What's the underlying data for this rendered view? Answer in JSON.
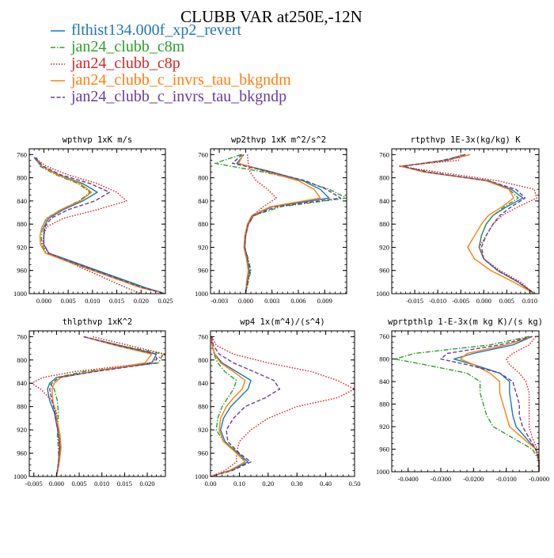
{
  "title": "CLUBB VAR at250E,-12N",
  "legend": [
    {
      "label": "flthist134.000f_xp2_revert",
      "color": "#1f77b4",
      "dash": "solid"
    },
    {
      "label": "jan24_clubb_c8m",
      "color": "#2ca02c",
      "dash": "dashdot"
    },
    {
      "label": "jan24_clubb_c8p",
      "color": "#d62728",
      "dash": "dot"
    },
    {
      "label": "jan24_clubb_c_invrs_tau_bkgndm",
      "color": "#ff7f0e",
      "dash": "solid"
    },
    {
      "label": "jan24_clubb_c_invrs_tau_bkgndp",
      "color": "#6a3d9a",
      "dash": "dash"
    }
  ],
  "chart_data": [
    {
      "type": "line",
      "title": "wpthvp  1xK m/s",
      "xlim": [
        -0.003,
        0.025
      ],
      "ylim": [
        1000,
        750
      ],
      "xticks": [
        "0.000",
        "0.005",
        "0.010",
        "0.015",
        "0.020",
        "0.025"
      ],
      "xtick_values": [
        0,
        0.005,
        0.01,
        0.015,
        0.02,
        0.025
      ],
      "yticks": [
        "760",
        "800",
        "840",
        "880",
        "920",
        "960",
        "1000"
      ],
      "ytick_values": [
        760,
        800,
        840,
        880,
        920,
        960,
        1000
      ],
      "y": [
        765,
        780,
        795,
        810,
        825,
        840,
        855,
        870,
        885,
        900,
        915,
        930,
        945,
        960,
        975,
        990,
        1000
      ],
      "series": [
        {
          "values": [
            -0.002,
            -0.0005,
            0.003,
            0.008,
            0.011,
            0.008,
            0.004,
            0.001,
            0.0,
            0.0,
            0.0,
            0.001,
            0.006,
            0.011,
            0.016,
            0.021,
            0.025
          ]
        },
        {
          "values": [
            -0.0015,
            -0.0008,
            0.0025,
            0.007,
            0.0095,
            0.0072,
            0.0035,
            0.0005,
            -0.0003,
            -0.0005,
            -0.0005,
            0.0005,
            0.0055,
            0.0105,
            0.0155,
            0.0205,
            0.025
          ]
        },
        {
          "values": [
            -0.002,
            0.0005,
            0.005,
            0.011,
            0.015,
            0.017,
            0.011,
            0.004,
            0.0005,
            0.0,
            -0.0003,
            0.001,
            0.005,
            0.009,
            0.013,
            0.017,
            0.02
          ]
        },
        {
          "values": [
            -0.0018,
            -0.0004,
            0.0028,
            0.0075,
            0.0098,
            0.0075,
            0.0035,
            0.0007,
            -0.0004,
            -0.0008,
            -0.0007,
            0.0003,
            0.005,
            0.01,
            0.015,
            0.02,
            0.025
          ]
        },
        {
          "values": [
            -0.0018,
            -0.0002,
            0.0035,
            0.0095,
            0.0135,
            0.0105,
            0.005,
            0.0015,
            0.0002,
            0.0,
            0.0,
            0.001,
            0.0055,
            0.0105,
            0.0155,
            0.0205,
            0.025
          ]
        }
      ]
    },
    {
      "type": "line",
      "title": "wp2thvp  1xK m^2/s^2",
      "xlim": [
        -0.004,
        0.0115
      ],
      "ylim": [
        1000,
        750
      ],
      "xticks": [
        "-0.003",
        "0.000",
        "0.003",
        "0.006",
        "0.009"
      ],
      "xtick_values": [
        -0.003,
        0,
        0.003,
        0.006,
        0.009
      ],
      "yticks": [
        "760",
        "800",
        "840",
        "880",
        "920",
        "960",
        "1000"
      ],
      "ytick_values": [
        760,
        800,
        840,
        880,
        920,
        960,
        1000
      ],
      "y": [
        760,
        775,
        790,
        805,
        820,
        835,
        850,
        865,
        880,
        900,
        920,
        940,
        960,
        980,
        1000
      ],
      "series": [
        {
          "values": [
            -0.0002,
            -0.001,
            0.003,
            0.0065,
            0.0085,
            0.0095,
            0.003,
            0.0008,
            0.0003,
            0.0,
            -0.0001,
            0.0002,
            0.0004,
            0.0002,
            0.0
          ]
        },
        {
          "values": [
            -0.0005,
            -0.0035,
            0.002,
            0.0065,
            0.0095,
            0.0115,
            0.004,
            0.001,
            0.0003,
            0.0,
            -0.0001,
            0.0003,
            0.0006,
            0.0003,
            0.0
          ]
        },
        {
          "values": [
            0.0002,
            0.0003,
            0.0005,
            0.0012,
            0.0025,
            0.0035,
            0.002,
            0.0008,
            0.0003,
            0.0,
            -0.0002,
            0.0001,
            0.0003,
            0.0002,
            0.0
          ]
        },
        {
          "values": [
            -0.0003,
            -0.0008,
            0.0025,
            0.006,
            0.0078,
            0.0085,
            0.0028,
            0.0007,
            0.0002,
            -0.0001,
            -0.0002,
            0.0001,
            0.0003,
            0.0001,
            0.0
          ]
        },
        {
          "values": [
            -0.0004,
            -0.0015,
            0.0028,
            0.0068,
            0.0092,
            0.0108,
            0.0035,
            0.0009,
            0.0003,
            0.0,
            -0.0001,
            0.0002,
            0.0005,
            0.0002,
            0.0
          ]
        }
      ]
    },
    {
      "type": "line",
      "title": "rtpthvp  1E-3x(kg/kg) K",
      "xlim": [
        -0.02,
        0.012
      ],
      "ylim": [
        1000,
        750
      ],
      "xticks": [
        "-0.015",
        "-0.010",
        "-0.005",
        "0.000",
        "0.005",
        "0.010"
      ],
      "xtick_values": [
        -0.015,
        -0.01,
        -0.005,
        0,
        0.005,
        0.01
      ],
      "yticks": [
        "760",
        "800",
        "840",
        "880",
        "920",
        "960",
        "1000"
      ],
      "ytick_values": [
        760,
        800,
        840,
        880,
        920,
        960,
        1000
      ],
      "y": [
        760,
        770,
        780,
        790,
        805,
        820,
        835,
        850,
        865,
        880,
        900,
        920,
        940,
        960,
        980,
        1000
      ],
      "series": [
        {
          "values": [
            -0.003,
            -0.008,
            -0.018,
            -0.013,
            0.001,
            0.006,
            0.0085,
            0.005,
            0.002,
            0.0005,
            -0.0005,
            -0.001,
            0.0,
            0.003,
            0.0075,
            0.011
          ]
        },
        {
          "values": [
            -0.004,
            -0.009,
            -0.0175,
            -0.012,
            0.0005,
            0.0055,
            0.0075,
            0.0045,
            0.002,
            0.0005,
            -0.0005,
            -0.001,
            0.0,
            0.003,
            0.0075,
            0.011
          ]
        },
        {
          "values": [
            -0.005,
            -0.0055,
            -0.0185,
            -0.01,
            0.003,
            0.011,
            0.0115,
            0.0075,
            0.004,
            0.002,
            0.0005,
            -0.001,
            0.0,
            0.0035,
            0.008,
            0.011
          ]
        },
        {
          "values": [
            -0.003,
            -0.0085,
            -0.018,
            -0.013,
            0.0005,
            0.0055,
            0.0065,
            0.004,
            0.001,
            -0.0005,
            -0.002,
            -0.0035,
            -0.002,
            0.0015,
            0.0065,
            0.011
          ]
        },
        {
          "values": [
            -0.004,
            -0.0085,
            -0.0175,
            -0.0125,
            0.001,
            0.007,
            0.009,
            0.006,
            0.0035,
            0.002,
            0.0005,
            -0.0005,
            0.0,
            0.003,
            0.0075,
            0.011
          ]
        }
      ]
    },
    {
      "type": "line",
      "title": "thlpthvp  1xK^2",
      "xlim": [
        -0.006,
        0.024
      ],
      "ylim": [
        1000,
        750
      ],
      "xticks": [
        "-0.005",
        "0.000",
        "0.005",
        "0.010",
        "0.015",
        "0.020"
      ],
      "xtick_values": [
        -0.005,
        0,
        0.005,
        0.01,
        0.015,
        0.02
      ],
      "yticks": [
        "760",
        "800",
        "840",
        "880",
        "920",
        "960",
        "1000"
      ],
      "ytick_values": [
        760,
        800,
        840,
        880,
        920,
        960,
        1000
      ],
      "y": [
        760,
        775,
        790,
        805,
        820,
        830,
        840,
        850,
        870,
        890,
        910,
        930,
        950,
        970,
        985,
        1000
      ],
      "series": [
        {
          "values": [
            0.006,
            0.014,
            0.022,
            0.021,
            0.008,
            0.0,
            -0.0015,
            -0.002,
            -0.0015,
            -0.0005,
            0.0,
            0.0005,
            0.0008,
            0.0005,
            0.0003,
            0.0
          ]
        },
        {
          "values": [
            0.006,
            0.014,
            0.0235,
            0.0225,
            0.006,
            0.0,
            -0.0015,
            -0.0005,
            0.0002,
            0.0004,
            0.0003,
            0.0002,
            0.0004,
            0.0005,
            0.0003,
            0.0
          ]
        },
        {
          "values": [
            0.008,
            0.016,
            0.024,
            0.0205,
            0.004,
            -0.003,
            -0.0055,
            -0.0035,
            -0.001,
            0.0,
            0.0003,
            0.0004,
            0.0006,
            0.0005,
            0.0003,
            0.0
          ]
        },
        {
          "values": [
            0.006,
            0.013,
            0.021,
            0.0195,
            0.008,
            0.001,
            -0.0005,
            -0.001,
            -0.0008,
            -0.0003,
            0.0003,
            0.0008,
            0.001,
            0.0007,
            0.0004,
            0.0
          ]
        },
        {
          "values": [
            0.006,
            0.0135,
            0.022,
            0.022,
            0.0085,
            0.0005,
            -0.001,
            -0.0015,
            -0.001,
            -0.0003,
            0.0,
            0.0005,
            0.0007,
            0.0005,
            0.0003,
            0.0
          ]
        }
      ]
    },
    {
      "type": "line",
      "title": "wp4  1x(m^4)/(s^4)",
      "xlim": [
        0.0,
        0.5
      ],
      "ylim": [
        1000,
        750
      ],
      "xticks": [
        "0.00",
        "0.10",
        "0.20",
        "0.30",
        "0.40",
        "0.50"
      ],
      "xtick_values": [
        0,
        0.1,
        0.2,
        0.3,
        0.4,
        0.5
      ],
      "yticks": [
        "760",
        "800",
        "840",
        "880",
        "920",
        "960",
        "1000"
      ],
      "ytick_values": [
        760,
        800,
        840,
        880,
        920,
        960,
        1000
      ],
      "y": [
        760,
        775,
        790,
        805,
        820,
        835,
        850,
        865,
        880,
        900,
        920,
        940,
        960,
        975,
        990,
        1000
      ],
      "series": [
        {
          "values": [
            0.003,
            0.006,
            0.015,
            0.04,
            0.09,
            0.14,
            0.13,
            0.1,
            0.07,
            0.045,
            0.035,
            0.05,
            0.095,
            0.13,
            0.07,
            0.0
          ]
        },
        {
          "values": [
            0.003,
            0.006,
            0.012,
            0.025,
            0.05,
            0.09,
            0.08,
            0.06,
            0.04,
            0.025,
            0.02,
            0.045,
            0.1,
            0.12,
            0.065,
            0.0
          ]
        },
        {
          "values": [
            0.005,
            0.02,
            0.08,
            0.2,
            0.35,
            0.44,
            0.5,
            0.44,
            0.3,
            0.2,
            0.14,
            0.1,
            0.09,
            0.09,
            0.05,
            0.0
          ]
        },
        {
          "values": [
            0.003,
            0.006,
            0.014,
            0.035,
            0.08,
            0.12,
            0.11,
            0.08,
            0.055,
            0.035,
            0.03,
            0.045,
            0.09,
            0.12,
            0.065,
            0.0
          ]
        },
        {
          "values": [
            0.004,
            0.01,
            0.03,
            0.08,
            0.15,
            0.22,
            0.24,
            0.19,
            0.12,
            0.08,
            0.055,
            0.06,
            0.1,
            0.14,
            0.075,
            0.0
          ]
        }
      ]
    },
    {
      "type": "line",
      "title": "wprtpthlp  1-E-3x(m kg K)/(s kg)",
      "xlim": [
        -0.045,
        0.0
      ],
      "ylim": [
        1000,
        750
      ],
      "xticks": [
        "-0.0400",
        "-0.0300",
        "-0.0200",
        "-0.0100",
        "-0.0000"
      ],
      "xtick_values": [
        -0.04,
        -0.03,
        -0.02,
        -0.01,
        0
      ],
      "yticks": [
        "760",
        "800",
        "840",
        "880",
        "920",
        "960",
        "1000"
      ],
      "ytick_values": [
        760,
        800,
        840,
        880,
        920,
        960,
        1000
      ],
      "y": [
        760,
        775,
        790,
        800,
        810,
        825,
        840,
        860,
        880,
        900,
        920,
        940,
        960,
        980,
        1000
      ],
      "series": [
        {
          "values": [
            -0.002,
            -0.008,
            -0.02,
            -0.026,
            -0.02,
            -0.012,
            -0.009,
            -0.009,
            -0.0085,
            -0.008,
            -0.007,
            -0.004,
            -0.001,
            0.0,
            0.0
          ]
        },
        {
          "values": [
            -0.003,
            -0.015,
            -0.038,
            -0.044,
            -0.035,
            -0.022,
            -0.018,
            -0.018,
            -0.017,
            -0.016,
            -0.014,
            -0.008,
            -0.002,
            0.0,
            0.0
          ]
        },
        {
          "values": [
            -0.001,
            -0.003,
            -0.008,
            -0.01,
            -0.009,
            -0.006,
            -0.004,
            -0.003,
            -0.003,
            -0.003,
            -0.003,
            -0.002,
            -0.0005,
            0.0,
            0.0
          ]
        },
        {
          "values": [
            -0.002,
            -0.01,
            -0.022,
            -0.024,
            -0.02,
            -0.015,
            -0.012,
            -0.012,
            -0.011,
            -0.01,
            -0.009,
            -0.005,
            -0.001,
            0.0,
            0.0
          ]
        },
        {
          "values": [
            -0.002,
            -0.012,
            -0.028,
            -0.03,
            -0.022,
            -0.012,
            -0.008,
            -0.007,
            -0.006,
            -0.006,
            -0.005,
            -0.003,
            -0.001,
            0.0,
            0.0
          ]
        }
      ]
    }
  ]
}
